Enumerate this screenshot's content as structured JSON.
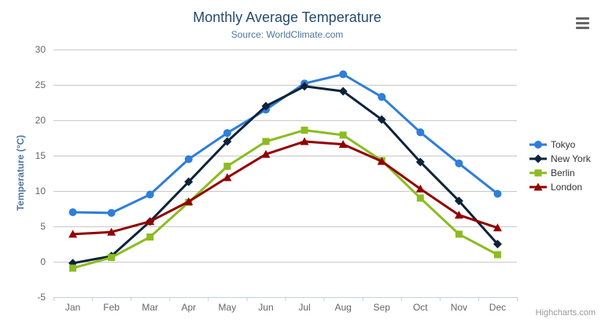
{
  "chart_data": {
    "type": "line",
    "title": "Monthly Average Temperature",
    "subtitle": "Source: WorldClimate.com",
    "xlabel": "",
    "ylabel": "Temperature (°C)",
    "categories": [
      "Jan",
      "Feb",
      "Mar",
      "Apr",
      "May",
      "Jun",
      "Jul",
      "Aug",
      "Sep",
      "Oct",
      "Nov",
      "Dec"
    ],
    "series": [
      {
        "name": "Tokyo",
        "color": "#2f7ed8",
        "marker": "circle",
        "values": [
          7.0,
          6.9,
          9.5,
          14.5,
          18.2,
          21.5,
          25.2,
          26.5,
          23.3,
          18.3,
          13.9,
          9.6
        ]
      },
      {
        "name": "New York",
        "color": "#0d233a",
        "marker": "diamond",
        "values": [
          -0.2,
          0.8,
          5.7,
          11.3,
          17.0,
          22.0,
          24.8,
          24.1,
          20.1,
          14.1,
          8.6,
          2.5
        ]
      },
      {
        "name": "Berlin",
        "color": "#8bbc21",
        "marker": "square",
        "values": [
          -0.9,
          0.6,
          3.5,
          8.4,
          13.5,
          17.0,
          18.6,
          17.9,
          14.3,
          9.0,
          3.9,
          1.0
        ]
      },
      {
        "name": "London",
        "color": "#910000",
        "marker": "triangle",
        "values": [
          3.9,
          4.2,
          5.7,
          8.5,
          11.9,
          15.2,
          17.0,
          16.6,
          14.2,
          10.3,
          6.6,
          4.8
        ]
      }
    ],
    "ylim": [
      -5,
      30
    ],
    "y_ticks": [
      -5,
      0,
      5,
      10,
      15,
      20,
      25,
      30
    ],
    "grid": "horizontal",
    "legend_position": "right"
  },
  "header": {
    "title": "Monthly Average Temperature",
    "subtitle": "Source: WorldClimate.com",
    "context_menu_icon": "hamburger-icon"
  },
  "credits": {
    "label": "Highcharts.com"
  },
  "colors": {
    "title_text": "#274b6d",
    "subtitle_text": "#4d759e",
    "axis_title_text": "#4d759e",
    "axis_label_text": "#666666",
    "gridline": "#c8c8c8",
    "axis_line": "#c0d0e0",
    "legend_text": "#333333",
    "credits_text": "#999999",
    "menu_icon": "#666666"
  }
}
